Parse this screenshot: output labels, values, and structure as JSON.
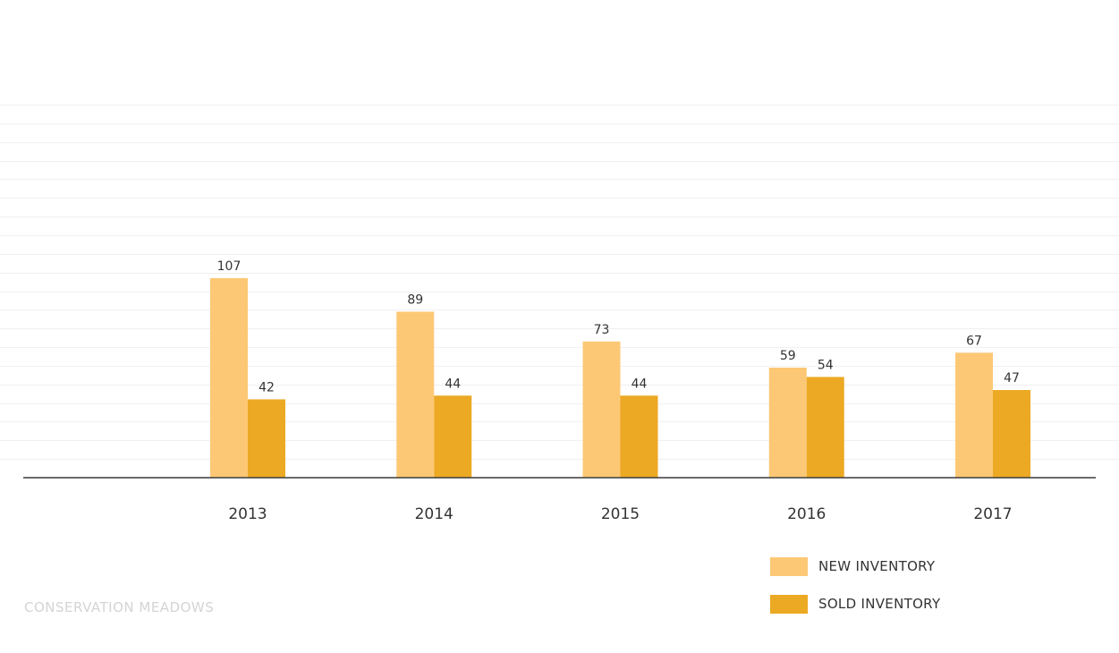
{
  "chart_data": {
    "type": "bar",
    "categories": [
      "2013",
      "2014",
      "2015",
      "2016",
      "2017"
    ],
    "series": [
      {
        "name": "NEW INVENTORY",
        "values": [
          107,
          89,
          73,
          59,
          67
        ],
        "color": "#fdc875"
      },
      {
        "name": "SOLD INVENTORY",
        "values": [
          42,
          44,
          44,
          54,
          47
        ],
        "color": "#eca924"
      }
    ],
    "ylim": [
      0,
      200
    ],
    "grid": true,
    "legend_position": "bottom-right"
  },
  "footer": {
    "label": "CONSERVATION MEADOWS"
  }
}
